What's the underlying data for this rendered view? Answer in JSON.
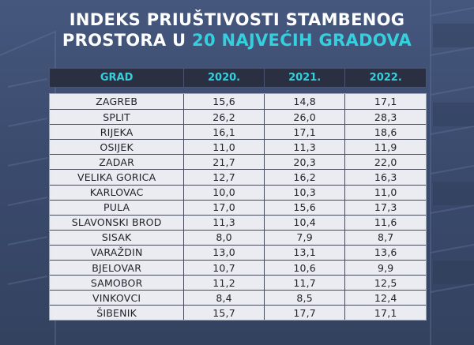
{
  "title": {
    "line1": "INDEKS PRIUŠTIVOSTI STAMBENOG",
    "line2_prefix": "PROSTORA U ",
    "line2_accent": "20 NAJVEĆIH GRADOVA"
  },
  "colors": {
    "accent": "#35d0de",
    "header_bg": "#2a2f42",
    "background": "#3b4b6e"
  },
  "table": {
    "headers": [
      "GRAD",
      "2020.",
      "2021.",
      "2022."
    ],
    "rows": [
      [
        "ZAGREB",
        "15,6",
        "14,8",
        "17,1"
      ],
      [
        "SPLIT",
        "26,2",
        "26,0",
        "28,3"
      ],
      [
        "RIJEKA",
        "16,1",
        "17,1",
        "18,6"
      ],
      [
        "OSIJEK",
        "11,0",
        "11,3",
        "11,9"
      ],
      [
        "ZADAR",
        "21,7",
        "20,3",
        "22,0"
      ],
      [
        "VELIKA GORICA",
        "12,7",
        "16,2",
        "16,3"
      ],
      [
        "KARLOVAC",
        "10,0",
        "10,3",
        "11,0"
      ],
      [
        "PULA",
        "17,0",
        "15,6",
        "17,3"
      ],
      [
        "SLAVONSKI BROD",
        "11,3",
        "10,4",
        "11,6"
      ],
      [
        "SISAK",
        "8,0",
        "7,9",
        "8,7"
      ],
      [
        "VARAŽDIN",
        "13,0",
        "13,1",
        "13,6"
      ],
      [
        "BJELOVAR",
        "10,7",
        "10,6",
        "9,9"
      ],
      [
        "SAMOBOR",
        "11,2",
        "11,7",
        "12,5"
      ],
      [
        "VINKOVCI",
        "8,4",
        "8,5",
        "12,4"
      ],
      [
        "ŠIBENIK",
        "15,7",
        "17,7",
        "17,1"
      ]
    ]
  }
}
